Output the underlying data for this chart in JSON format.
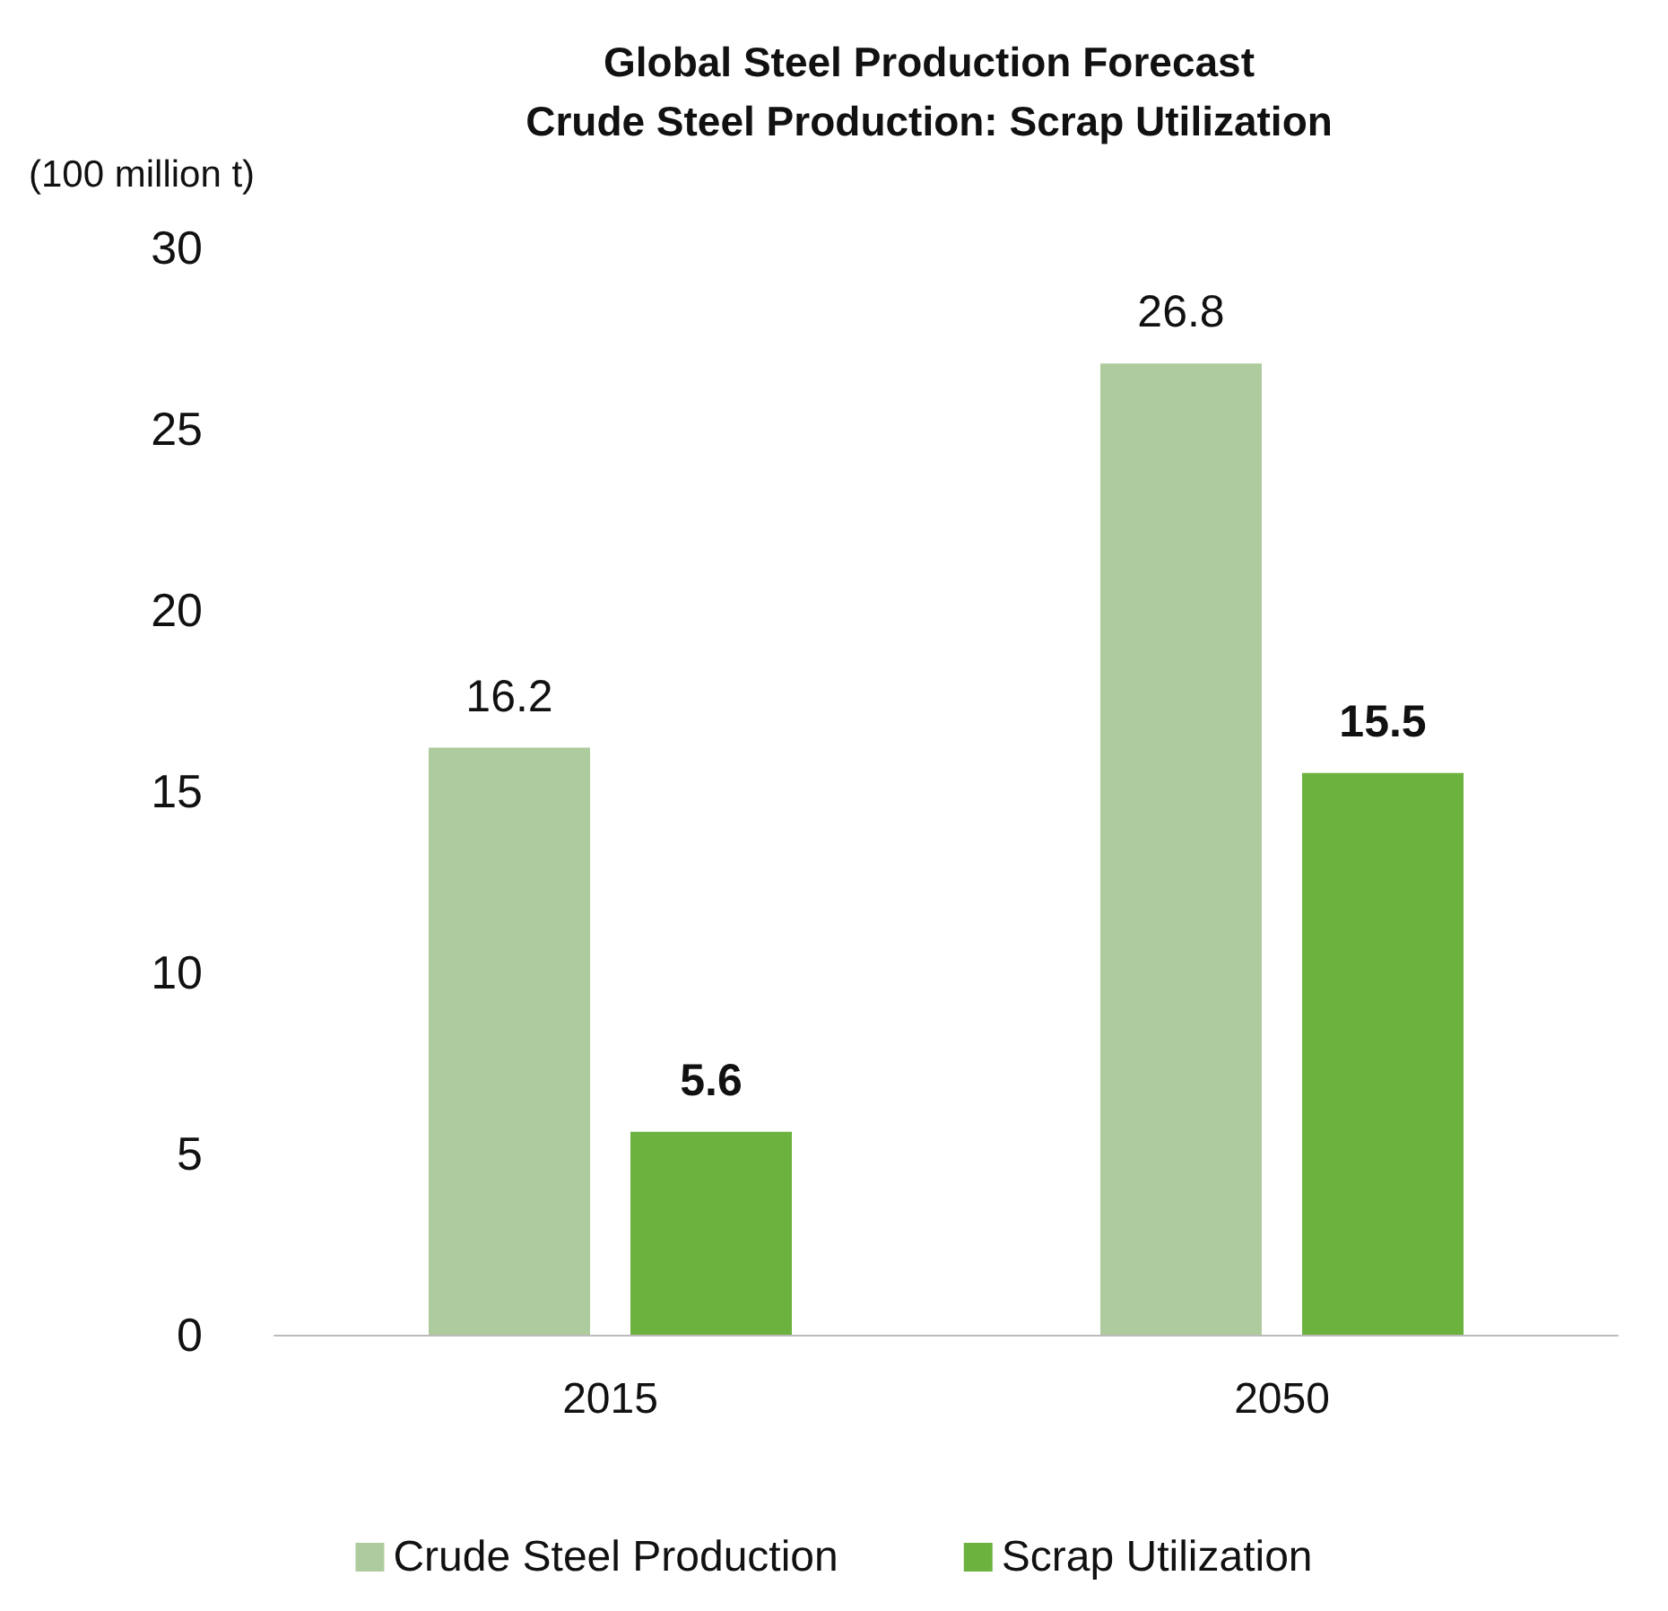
{
  "chart_data": {
    "type": "bar",
    "title": "Global Steel Production Forecast\nCrude Steel Production: Scrap Utilization",
    "ylabel": "(100 million t)",
    "categories": [
      "2015",
      "2050"
    ],
    "series": [
      {
        "name": "Crude Steel Production",
        "color": "#aecb9e",
        "values": [
          16.2,
          26.8
        ]
      },
      {
        "name": "Scrap Utilization",
        "color": "#6cb23f",
        "values": [
          5.6,
          15.5
        ]
      }
    ],
    "ylim": [
      0,
      30
    ],
    "yticks": [
      0,
      5,
      10,
      15,
      20,
      25,
      30
    ],
    "grid": false,
    "legend": "bottom",
    "data_labels": true
  }
}
